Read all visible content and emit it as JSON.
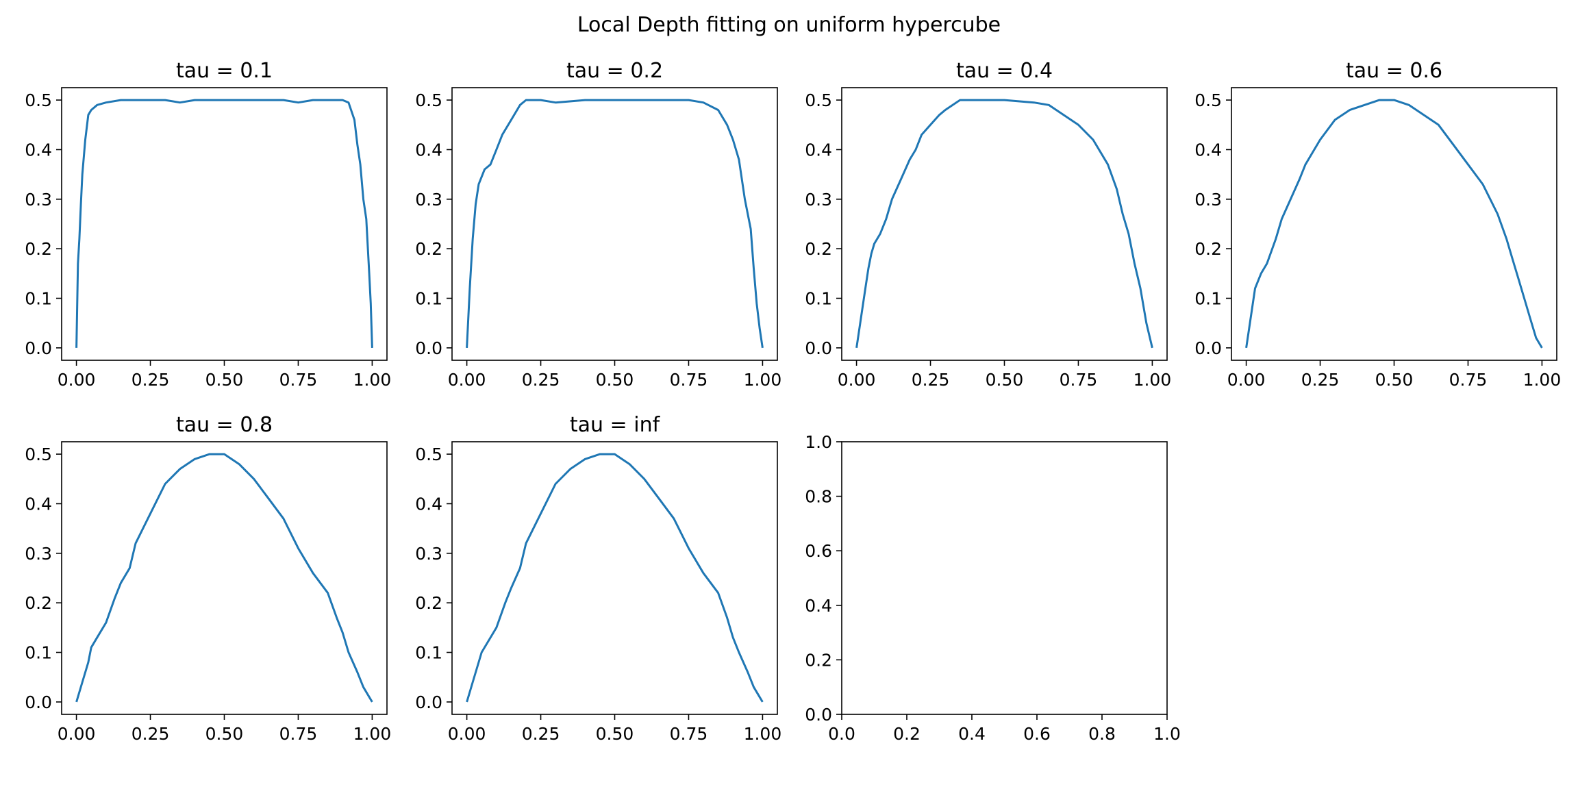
{
  "figure": {
    "suptitle": "Local Depth fitting on uniform hypercube",
    "line_color": "#1f77b4"
  },
  "chart_data": [
    {
      "type": "line",
      "title": "tau = 0.1",
      "xlabel": "",
      "ylabel": "",
      "xlim": [
        -0.05,
        1.05
      ],
      "ylim": [
        -0.025,
        0.525
      ],
      "xticks": [
        "0.00",
        "0.25",
        "0.50",
        "0.75",
        "1.00"
      ],
      "yticks": [
        "0.0",
        "0.1",
        "0.2",
        "0.3",
        "0.4",
        "0.5"
      ],
      "x": [
        0,
        0.005,
        0.01,
        0.015,
        0.02,
        0.03,
        0.04,
        0.05,
        0.07,
        0.1,
        0.15,
        0.2,
        0.25,
        0.3,
        0.35,
        0.4,
        0.5,
        0.6,
        0.7,
        0.75,
        0.8,
        0.85,
        0.9,
        0.92,
        0.94,
        0.95,
        0.96,
        0.97,
        0.98,
        0.99,
        0.995,
        1.0
      ],
      "y": [
        0.0,
        0.17,
        0.22,
        0.29,
        0.35,
        0.42,
        0.47,
        0.48,
        0.49,
        0.495,
        0.5,
        0.5,
        0.5,
        0.5,
        0.495,
        0.5,
        0.5,
        0.5,
        0.5,
        0.495,
        0.5,
        0.5,
        0.5,
        0.495,
        0.46,
        0.41,
        0.37,
        0.3,
        0.26,
        0.15,
        0.09,
        0.0
      ]
    },
    {
      "type": "line",
      "title": "tau = 0.2",
      "xlabel": "",
      "ylabel": "",
      "xlim": [
        -0.05,
        1.05
      ],
      "ylim": [
        -0.025,
        0.525
      ],
      "xticks": [
        "0.00",
        "0.25",
        "0.50",
        "0.75",
        "1.00"
      ],
      "yticks": [
        "0.0",
        "0.1",
        "0.2",
        "0.3",
        "0.4",
        "0.5"
      ],
      "x": [
        0,
        0.01,
        0.02,
        0.03,
        0.04,
        0.06,
        0.08,
        0.1,
        0.12,
        0.15,
        0.18,
        0.2,
        0.25,
        0.3,
        0.4,
        0.5,
        0.6,
        0.7,
        0.75,
        0.8,
        0.85,
        0.88,
        0.9,
        0.92,
        0.94,
        0.96,
        0.97,
        0.98,
        0.99,
        1.0
      ],
      "y": [
        0.0,
        0.12,
        0.22,
        0.29,
        0.33,
        0.36,
        0.37,
        0.4,
        0.43,
        0.46,
        0.49,
        0.5,
        0.5,
        0.495,
        0.5,
        0.5,
        0.5,
        0.5,
        0.5,
        0.495,
        0.48,
        0.45,
        0.42,
        0.38,
        0.3,
        0.24,
        0.16,
        0.09,
        0.04,
        0.0
      ]
    },
    {
      "type": "line",
      "title": "tau = 0.4",
      "xlabel": "",
      "ylabel": "",
      "xlim": [
        -0.05,
        1.05
      ],
      "ylim": [
        -0.025,
        0.525
      ],
      "xticks": [
        "0.00",
        "0.25",
        "0.50",
        "0.75",
        "1.00"
      ],
      "yticks": [
        "0.0",
        "0.1",
        "0.2",
        "0.3",
        "0.4",
        "0.5"
      ],
      "x": [
        0,
        0.01,
        0.02,
        0.03,
        0.04,
        0.05,
        0.06,
        0.08,
        0.1,
        0.12,
        0.15,
        0.18,
        0.2,
        0.22,
        0.25,
        0.28,
        0.3,
        0.35,
        0.4,
        0.5,
        0.6,
        0.65,
        0.7,
        0.75,
        0.8,
        0.85,
        0.88,
        0.9,
        0.92,
        0.94,
        0.96,
        0.98,
        1.0
      ],
      "y": [
        0.0,
        0.04,
        0.08,
        0.12,
        0.16,
        0.19,
        0.21,
        0.23,
        0.26,
        0.3,
        0.34,
        0.38,
        0.4,
        0.43,
        0.45,
        0.47,
        0.48,
        0.5,
        0.5,
        0.5,
        0.495,
        0.49,
        0.47,
        0.45,
        0.42,
        0.37,
        0.32,
        0.27,
        0.23,
        0.17,
        0.12,
        0.05,
        0.0
      ]
    },
    {
      "type": "line",
      "title": "tau = 0.6",
      "xlabel": "",
      "ylabel": "",
      "xlim": [
        -0.05,
        1.05
      ],
      "ylim": [
        -0.025,
        0.525
      ],
      "xticks": [
        "0.00",
        "0.25",
        "0.50",
        "0.75",
        "1.00"
      ],
      "yticks": [
        "0.0",
        "0.1",
        "0.2",
        "0.3",
        "0.4",
        "0.5"
      ],
      "x": [
        0,
        0.01,
        0.02,
        0.03,
        0.05,
        0.07,
        0.1,
        0.12,
        0.15,
        0.18,
        0.2,
        0.25,
        0.3,
        0.35,
        0.4,
        0.45,
        0.5,
        0.55,
        0.6,
        0.65,
        0.7,
        0.75,
        0.8,
        0.85,
        0.88,
        0.9,
        0.92,
        0.94,
        0.96,
        0.98,
        1.0
      ],
      "y": [
        0.0,
        0.04,
        0.08,
        0.12,
        0.15,
        0.17,
        0.22,
        0.26,
        0.3,
        0.34,
        0.37,
        0.42,
        0.46,
        0.48,
        0.49,
        0.5,
        0.5,
        0.49,
        0.47,
        0.45,
        0.41,
        0.37,
        0.33,
        0.27,
        0.22,
        0.18,
        0.14,
        0.1,
        0.06,
        0.02,
        0.0
      ]
    },
    {
      "type": "line",
      "title": "tau = 0.8",
      "xlabel": "",
      "ylabel": "",
      "xlim": [
        -0.05,
        1.05
      ],
      "ylim": [
        -0.025,
        0.525
      ],
      "xticks": [
        "0.00",
        "0.25",
        "0.50",
        "0.75",
        "1.00"
      ],
      "yticks": [
        "0.0",
        "0.1",
        "0.2",
        "0.3",
        "0.4",
        "0.5"
      ],
      "x": [
        0,
        0.02,
        0.04,
        0.05,
        0.07,
        0.1,
        0.13,
        0.15,
        0.18,
        0.2,
        0.25,
        0.3,
        0.35,
        0.4,
        0.45,
        0.5,
        0.55,
        0.6,
        0.65,
        0.7,
        0.75,
        0.8,
        0.85,
        0.88,
        0.9,
        0.92,
        0.95,
        0.97,
        0.99,
        1.0
      ],
      "y": [
        0.0,
        0.04,
        0.08,
        0.11,
        0.13,
        0.16,
        0.21,
        0.24,
        0.27,
        0.32,
        0.38,
        0.44,
        0.47,
        0.49,
        0.5,
        0.5,
        0.48,
        0.45,
        0.41,
        0.37,
        0.31,
        0.26,
        0.22,
        0.17,
        0.14,
        0.1,
        0.06,
        0.03,
        0.01,
        0.0
      ]
    },
    {
      "type": "line",
      "title": "tau = inf",
      "xlabel": "",
      "ylabel": "",
      "xlim": [
        -0.05,
        1.05
      ],
      "ylim": [
        -0.025,
        0.525
      ],
      "xticks": [
        "0.00",
        "0.25",
        "0.50",
        "0.75",
        "1.00"
      ],
      "yticks": [
        "0.0",
        "0.1",
        "0.2",
        "0.3",
        "0.4",
        "0.5"
      ],
      "x": [
        0,
        0.02,
        0.04,
        0.05,
        0.07,
        0.1,
        0.13,
        0.15,
        0.18,
        0.2,
        0.25,
        0.3,
        0.35,
        0.4,
        0.45,
        0.5,
        0.55,
        0.6,
        0.65,
        0.7,
        0.75,
        0.8,
        0.85,
        0.88,
        0.9,
        0.92,
        0.95,
        0.97,
        0.99,
        1.0
      ],
      "y": [
        0.0,
        0.04,
        0.08,
        0.1,
        0.12,
        0.15,
        0.2,
        0.23,
        0.27,
        0.32,
        0.38,
        0.44,
        0.47,
        0.49,
        0.5,
        0.5,
        0.48,
        0.45,
        0.41,
        0.37,
        0.31,
        0.26,
        0.22,
        0.17,
        0.13,
        0.1,
        0.06,
        0.03,
        0.01,
        0.0
      ]
    },
    {
      "type": "line",
      "title": "",
      "xlabel": "",
      "ylabel": "",
      "xlim": [
        0,
        1
      ],
      "ylim": [
        0,
        1
      ],
      "xticks": [
        "0.0",
        "0.2",
        "0.4",
        "0.6",
        "0.8",
        "1.0"
      ],
      "yticks": [
        "0.0",
        "0.2",
        "0.4",
        "0.6",
        "0.8",
        "1.0"
      ],
      "x": [],
      "y": []
    }
  ]
}
